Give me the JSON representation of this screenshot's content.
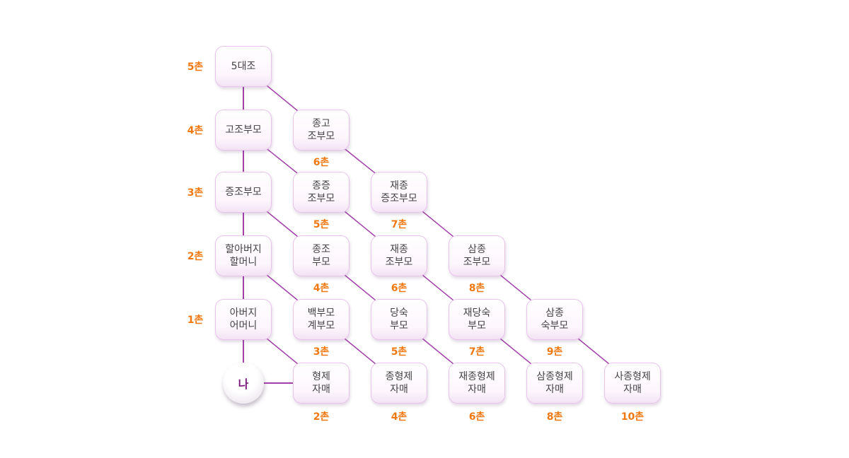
{
  "levels": [
    {
      "id": "5",
      "label": "5촌"
    },
    {
      "id": "4",
      "label": "4촌"
    },
    {
      "id": "3",
      "label": "3촌"
    },
    {
      "id": "2",
      "label": "2촌"
    },
    {
      "id": "1",
      "label": "1촌"
    }
  ],
  "me": {
    "label": "나"
  },
  "nodes": [
    {
      "id": "daejo5",
      "lines": [
        "5대조"
      ]
    },
    {
      "id": "gojobumo",
      "lines": [
        "고조부모"
      ]
    },
    {
      "id": "jeungjobumo",
      "lines": [
        "증조부모"
      ]
    },
    {
      "id": "grandparents",
      "lines": [
        "할아버지",
        "할머니"
      ]
    },
    {
      "id": "parents",
      "lines": [
        "아버지",
        "어머니"
      ]
    },
    {
      "id": "jonggo",
      "lines": [
        "종고",
        "조부모"
      ],
      "degree": "6촌"
    },
    {
      "id": "jongjeung",
      "lines": [
        "종증",
        "조부모"
      ],
      "degree": "5촌"
    },
    {
      "id": "jaejong-jeung",
      "lines": [
        "재종",
        "증조부모"
      ],
      "degree": "7촌"
    },
    {
      "id": "jongjo",
      "lines": [
        "종조",
        "부모"
      ],
      "degree": "4촌"
    },
    {
      "id": "jaejong-jo",
      "lines": [
        "재종",
        "조부모"
      ],
      "degree": "6촌"
    },
    {
      "id": "samjong-jo",
      "lines": [
        "삼종",
        "조부모"
      ],
      "degree": "8촌"
    },
    {
      "id": "baekgye",
      "lines": [
        "백부모",
        "계부모"
      ],
      "degree": "3촌"
    },
    {
      "id": "dangsuk",
      "lines": [
        "당숙",
        "부모"
      ],
      "degree": "5촌"
    },
    {
      "id": "jaedangsuk",
      "lines": [
        "재당숙",
        "부모"
      ],
      "degree": "7촌"
    },
    {
      "id": "samjong-suk",
      "lines": [
        "삼종",
        "숙부모"
      ],
      "degree": "9촌"
    },
    {
      "id": "siblings",
      "lines": [
        "형제",
        "자매"
      ],
      "degree": "2촌"
    },
    {
      "id": "jonghyeongje",
      "lines": [
        "종형제",
        "자매"
      ],
      "degree": "4촌"
    },
    {
      "id": "jaejonghyeongje",
      "lines": [
        "재종형제",
        "자매"
      ],
      "degree": "6촌"
    },
    {
      "id": "samjonghyeongje",
      "lines": [
        "삼종형제",
        "자매"
      ],
      "degree": "8촌"
    },
    {
      "id": "sajonghyeongje",
      "lines": [
        "사종형제",
        "자매"
      ],
      "degree": "10촌"
    }
  ],
  "connections": [
    [
      "daejo5",
      "gojobumo"
    ],
    [
      "gojobumo",
      "jeungjobumo"
    ],
    [
      "jeungjobumo",
      "grandparents"
    ],
    [
      "grandparents",
      "parents"
    ],
    [
      "parents",
      "me"
    ],
    [
      "me",
      "siblings"
    ],
    [
      "daejo5",
      "jonggo"
    ],
    [
      "jonggo",
      "jaejong-jeung"
    ],
    [
      "jaejong-jeung",
      "samjong-jo"
    ],
    [
      "samjong-jo",
      "samjong-suk"
    ],
    [
      "samjong-suk",
      "sajonghyeongje"
    ],
    [
      "gojobumo",
      "jongjeung"
    ],
    [
      "jongjeung",
      "jaejong-jo"
    ],
    [
      "jaejong-jo",
      "jaedangsuk"
    ],
    [
      "jaedangsuk",
      "samjonghyeongje"
    ],
    [
      "jeungjobumo",
      "jongjo"
    ],
    [
      "jongjo",
      "dangsuk"
    ],
    [
      "dangsuk",
      "jaejonghyeongje"
    ],
    [
      "grandparents",
      "baekgye"
    ],
    [
      "baekgye",
      "jonghyeongje"
    ],
    [
      "parents",
      "siblings"
    ]
  ],
  "colors": {
    "line": "#a040a8",
    "degree_text": "#f07810",
    "box_border": "#e9c3ee",
    "me_text": "#7a1a7e"
  }
}
